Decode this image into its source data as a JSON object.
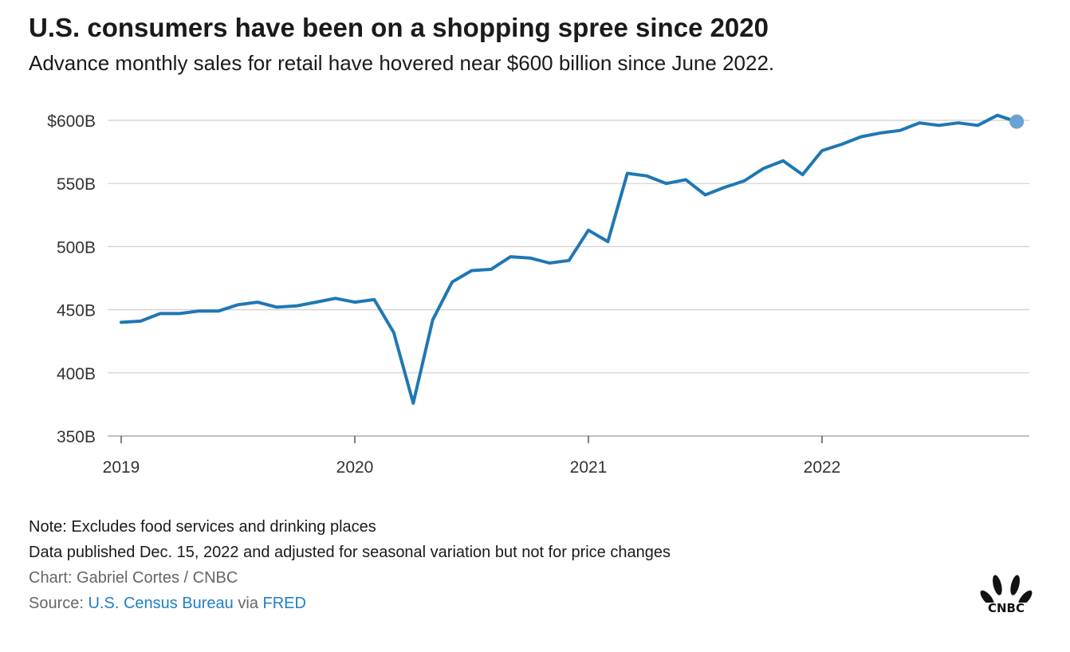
{
  "header": {
    "title": "U.S. consumers have been on a shopping spree since 2020",
    "subtitle": "Advance monthly sales for retail have hovered near $600 billion since June 2022."
  },
  "chart_data": {
    "type": "line",
    "title": "U.S. consumers have been on a shopping spree since 2020",
    "subtitle": "Advance monthly sales for retail have hovered near $600 billion since June 2022.",
    "xlabel": "",
    "ylabel": "",
    "x_ticks": [
      "2019",
      "2020",
      "2021",
      "2022"
    ],
    "y_ticks": [
      "$600B",
      "550B",
      "500B",
      "450B",
      "400B",
      "350B"
    ],
    "ylim": [
      350,
      600
    ],
    "grid": true,
    "line_color": "#1f77b4",
    "endpoint_color": "#6aa3d3",
    "series": [
      {
        "x": [
          "2019-01",
          "2019-02",
          "2019-03",
          "2019-04",
          "2019-05",
          "2019-06",
          "2019-07",
          "2019-08",
          "2019-09",
          "2019-10",
          "2019-11",
          "2019-12",
          "2020-01",
          "2020-02",
          "2020-03",
          "2020-04",
          "2020-05",
          "2020-06",
          "2020-07",
          "2020-08",
          "2020-09",
          "2020-10",
          "2020-11",
          "2020-12",
          "2021-01",
          "2021-02",
          "2021-03",
          "2021-04",
          "2021-05",
          "2021-06",
          "2021-07",
          "2021-08",
          "2021-09",
          "2021-10",
          "2021-11",
          "2021-12",
          "2022-01",
          "2022-02",
          "2022-03",
          "2022-04",
          "2022-05",
          "2022-06",
          "2022-07",
          "2022-08",
          "2022-09",
          "2022-10",
          "2022-11"
        ],
        "values": [
          440,
          441,
          447,
          447,
          449,
          449,
          454,
          456,
          452,
          453,
          456,
          459,
          456,
          458,
          432,
          376,
          442,
          472,
          481,
          482,
          492,
          491,
          487,
          489,
          513,
          504,
          558,
          556,
          550,
          553,
          541,
          547,
          552,
          562,
          568,
          557,
          576,
          581,
          587,
          590,
          592,
          598,
          596,
          598,
          596,
          604,
          599
        ]
      }
    ]
  },
  "footer": {
    "note": "Note: Excludes food services and drinking places",
    "published": "Data published Dec. 15, 2022 and adjusted for seasonal variation but not for price changes",
    "credit": "Chart: Gabriel Cortes / CNBC",
    "source_prefix": "Source: ",
    "source_link_1": "U.S. Census Bureau",
    "source_via": " via ",
    "source_link_2": "FRED"
  },
  "logo": {
    "text": "CNBC",
    "icon": "peacock-icon"
  }
}
